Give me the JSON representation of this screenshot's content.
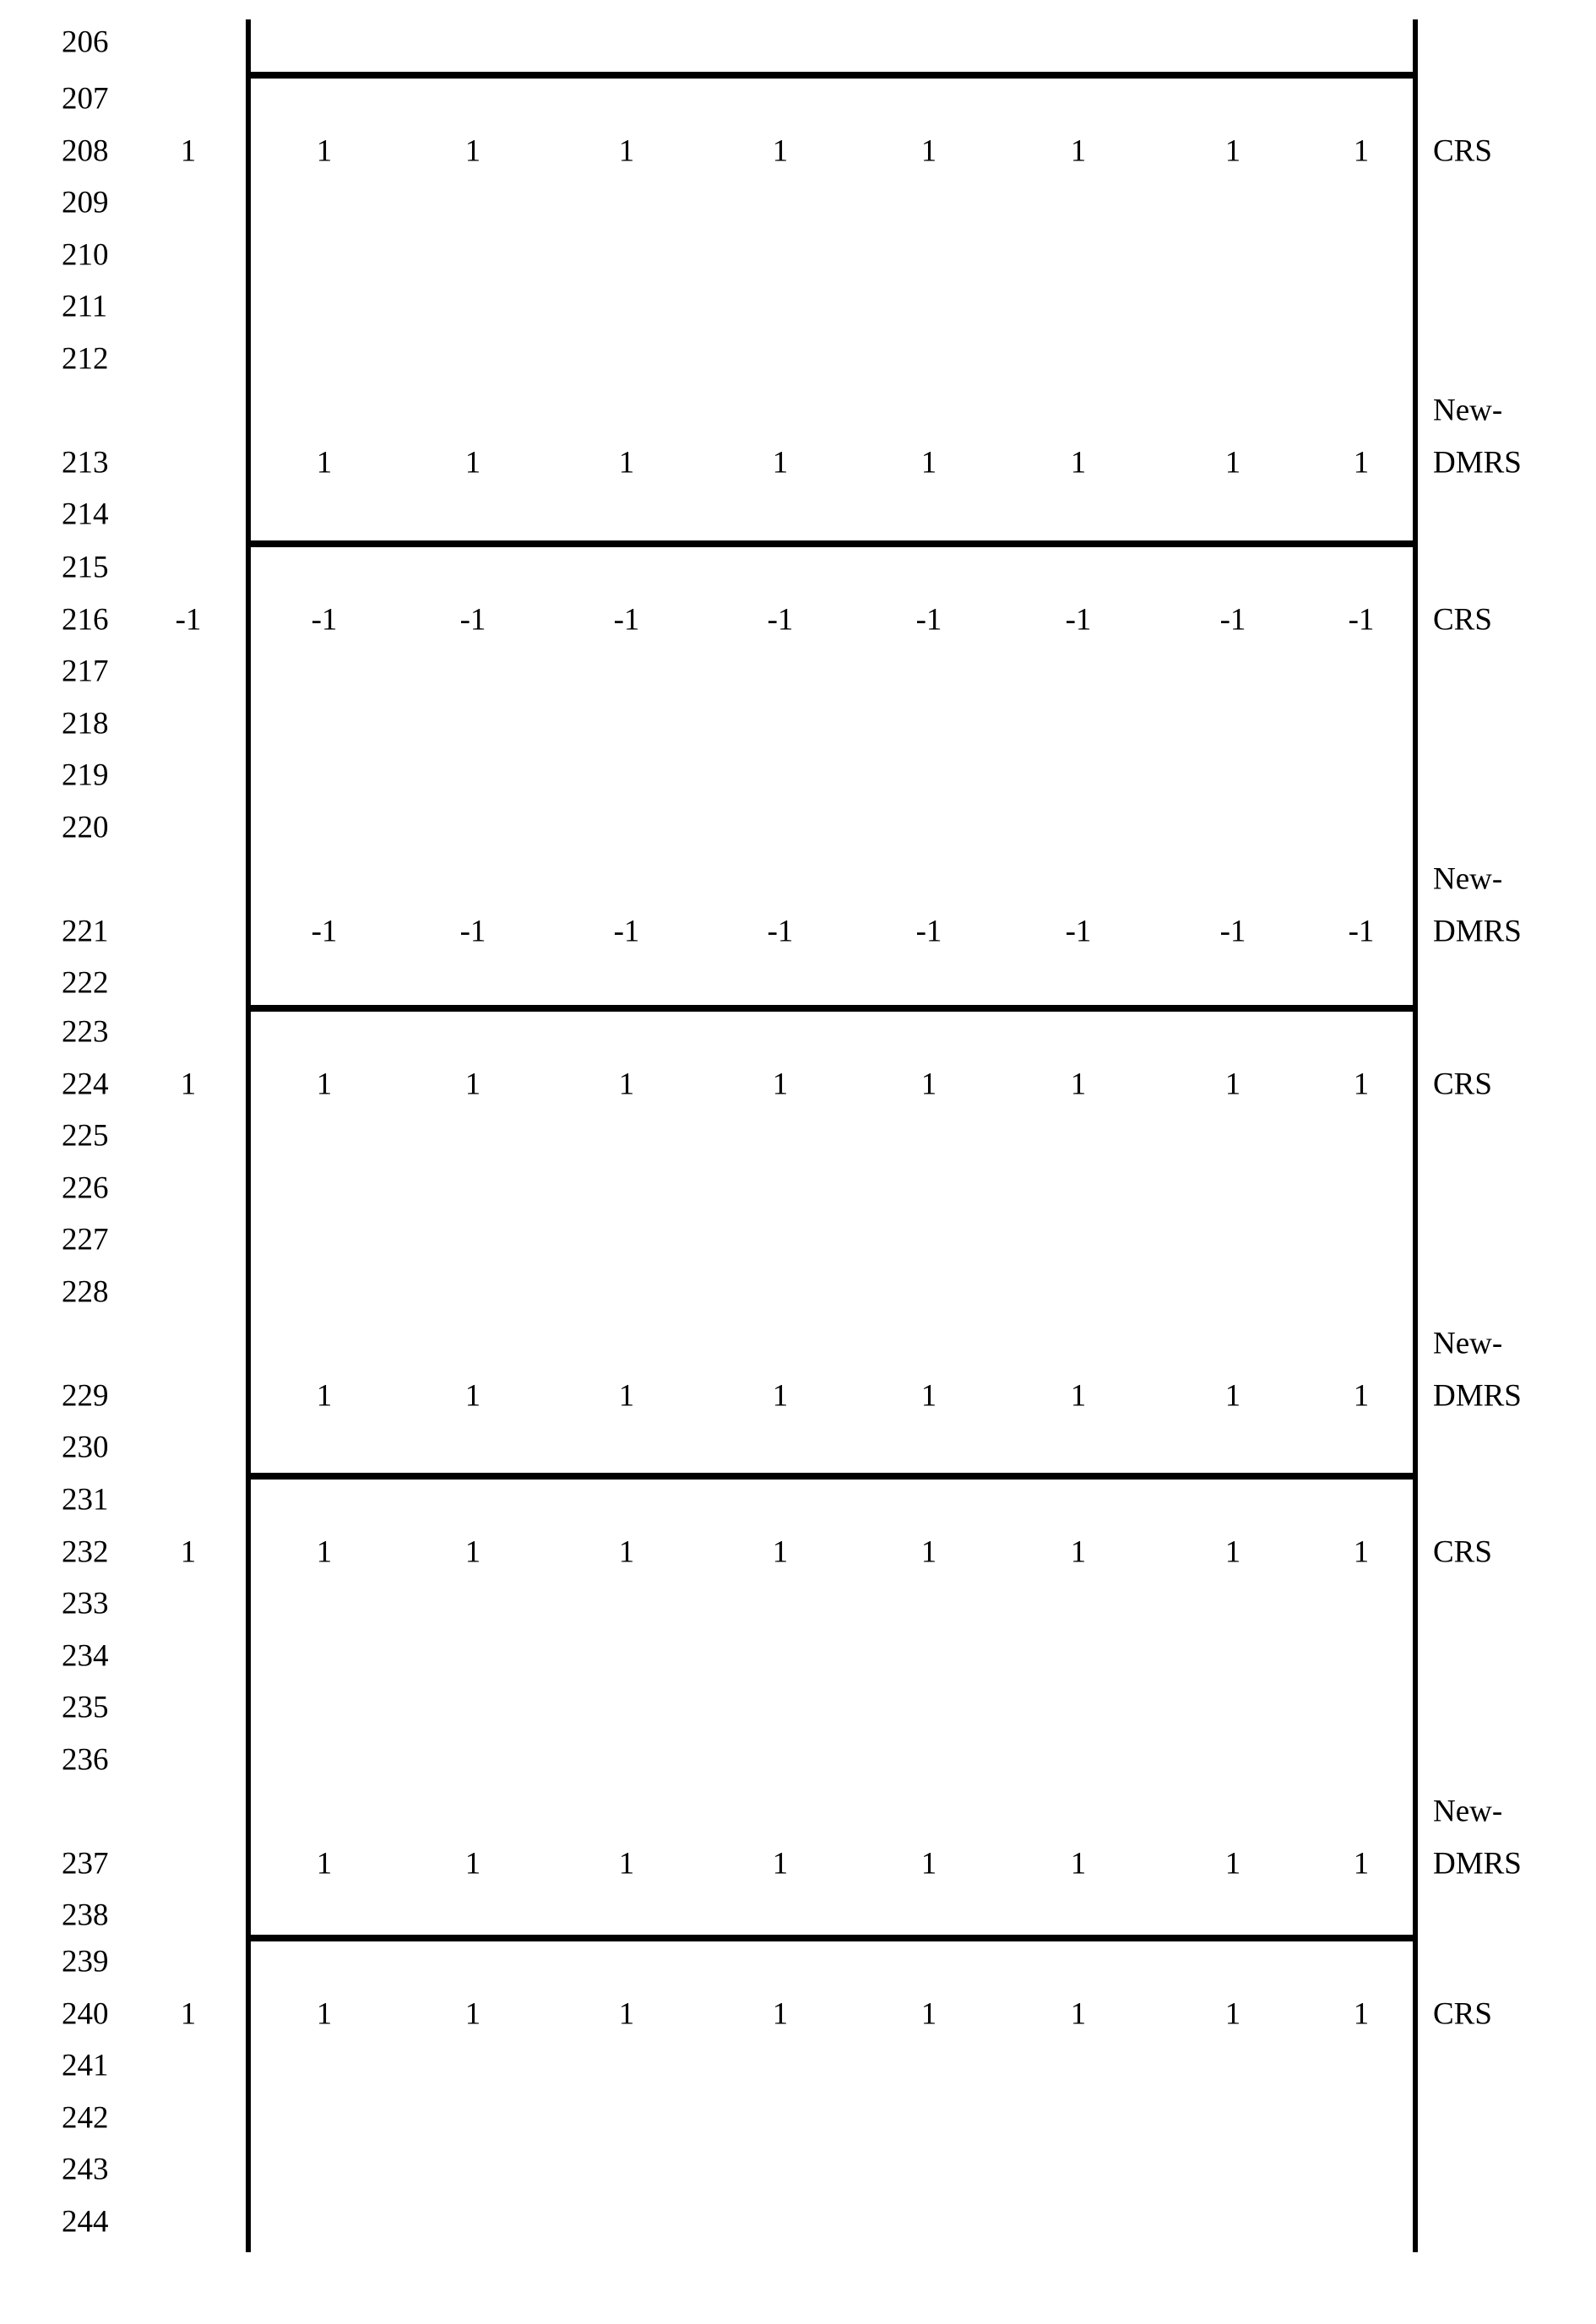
{
  "page": {
    "pre_rows": [
      {
        "num": "206"
      }
    ],
    "sections": [
      {
        "rows": [
          {
            "num": "207"
          },
          {
            "num": "208",
            "left_value": "1",
            "values": [
              "1",
              "1",
              "1",
              "1",
              "1",
              "1",
              "1",
              "1"
            ],
            "right_label": "CRS"
          },
          {
            "num": "209"
          },
          {
            "num": "210"
          },
          {
            "num": "211"
          },
          {
            "num": "212"
          },
          {
            "right_label": "New-"
          },
          {
            "num": "213",
            "values": [
              "1",
              "1",
              "1",
              "1",
              "1",
              "1",
              "1",
              "1"
            ],
            "right_label": "DMRS"
          },
          {
            "num": "214"
          }
        ]
      },
      {
        "rows": [
          {
            "num": "215"
          },
          {
            "num": "216",
            "left_value": "-1",
            "values": [
              "-1",
              "-1",
              "-1",
              "-1",
              "-1",
              "-1",
              "-1",
              "-1"
            ],
            "right_label": "CRS"
          },
          {
            "num": "217"
          },
          {
            "num": "218"
          },
          {
            "num": "219"
          },
          {
            "num": "220"
          },
          {
            "right_label": "New-"
          },
          {
            "num": "221",
            "values": [
              "-1",
              "-1",
              "-1",
              "-1",
              "-1",
              "-1",
              "-1",
              "-1"
            ],
            "right_label": "DMRS"
          },
          {
            "num": "222"
          }
        ]
      },
      {
        "rows": [
          {
            "num": "223"
          },
          {
            "num": "224",
            "left_value": "1",
            "values": [
              "1",
              "1",
              "1",
              "1",
              "1",
              "1",
              "1",
              "1"
            ],
            "right_label": "CRS"
          },
          {
            "num": "225"
          },
          {
            "num": "226"
          },
          {
            "num": "227"
          },
          {
            "num": "228"
          },
          {
            "right_label": "New-"
          },
          {
            "num": "229",
            "values": [
              "1",
              "1",
              "1",
              "1",
              "1",
              "1",
              "1",
              "1"
            ],
            "right_label": "DMRS"
          },
          {
            "num": "230"
          }
        ]
      },
      {
        "rows": [
          {
            "num": "231"
          },
          {
            "num": "232",
            "left_value": "1",
            "values": [
              "1",
              "1",
              "1",
              "1",
              "1",
              "1",
              "1",
              "1"
            ],
            "right_label": "CRS"
          },
          {
            "num": "233"
          },
          {
            "num": "234"
          },
          {
            "num": "235"
          },
          {
            "num": "236"
          },
          {
            "right_label": "New-"
          },
          {
            "num": "237",
            "values": [
              "1",
              "1",
              "1",
              "1",
              "1",
              "1",
              "1",
              "1"
            ],
            "right_label": "DMRS"
          },
          {
            "num": "238"
          }
        ]
      },
      {
        "rows": [
          {
            "num": "239"
          },
          {
            "num": "240",
            "left_value": "1",
            "values": [
              "1",
              "1",
              "1",
              "1",
              "1",
              "1",
              "1",
              "1"
            ],
            "right_label": "CRS"
          },
          {
            "num": "241"
          },
          {
            "num": "242"
          },
          {
            "num": "243"
          },
          {
            "num": "244"
          }
        ]
      }
    ]
  }
}
